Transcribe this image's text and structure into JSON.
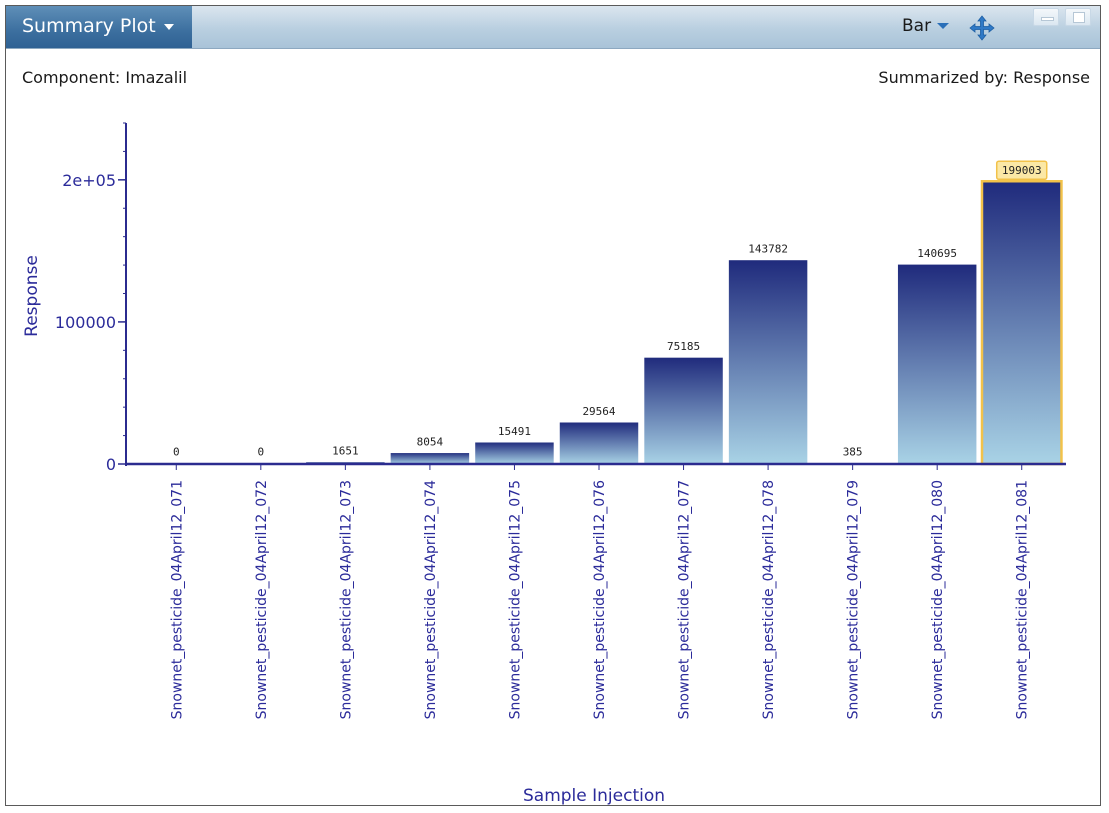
{
  "window": {
    "title": "Summary Plot",
    "chart_type_label": "Bar",
    "component_prefix": "Component:",
    "component_name": "Imazalil",
    "summarized_prefix": "Summarized by:",
    "summarized_value": "Response"
  },
  "colors": {
    "bar_top": "#1f2a7c",
    "bar_bottom": "#a9d3e6",
    "axis": "#2b2b8f",
    "selection": "#f2c24a",
    "selection_label_bg": "#fbe8a6"
  },
  "chart_data": {
    "type": "bar",
    "xlabel": "Sample Injection",
    "ylabel": "Response",
    "ylim": [
      0,
      240000
    ],
    "yticks": [
      0,
      100000,
      200000
    ],
    "ytick_labels": [
      "0",
      "100000",
      "2e+05"
    ],
    "categories": [
      "Snownet_pesticide_04April12_071",
      "Snownet_pesticide_04April12_072",
      "Snownet_pesticide_04April12_073",
      "Snownet_pesticide_04April12_074",
      "Snownet_pesticide_04April12_075",
      "Snownet_pesticide_04April12_076",
      "Snownet_pesticide_04April12_077",
      "Snownet_pesticide_04April12_078",
      "Snownet_pesticide_04April12_079",
      "Snownet_pesticide_04April12_080",
      "Snownet_pesticide_04April12_081"
    ],
    "values": [
      0,
      0,
      1651,
      8054,
      15491,
      29564,
      75185,
      143782,
      385,
      140695,
      199003
    ],
    "value_labels": [
      "0",
      "0",
      "1651",
      "8054",
      "15491",
      "29564",
      "75185",
      "143782",
      "385",
      "140695",
      "199003"
    ],
    "selected_index": 10,
    "grid": false,
    "legend": "none"
  }
}
